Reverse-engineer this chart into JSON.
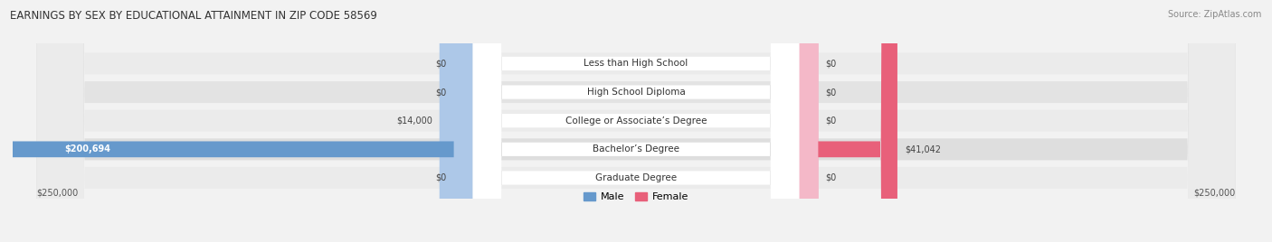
{
  "title": "EARNINGS BY SEX BY EDUCATIONAL ATTAINMENT IN ZIP CODE 58569",
  "source": "Source: ZipAtlas.com",
  "categories": [
    "Less than High School",
    "High School Diploma",
    "College or Associate’s Degree",
    "Bachelor’s Degree",
    "Graduate Degree"
  ],
  "male_values": [
    0,
    0,
    14000,
    200694,
    0
  ],
  "female_values": [
    0,
    0,
    0,
    41042,
    0
  ],
  "max_val": 250000,
  "min_bar": 8000,
  "male_color_light": "#adc8e8",
  "male_color_dark": "#6699cc",
  "female_color_light": "#f4b8c8",
  "female_color_dark": "#e8607a",
  "label_color": "#555555",
  "bg_color": "#f2f2f2",
  "row_colors": [
    "#ebebeb",
    "#e3e3e3",
    "#ebebeb",
    "#dedede",
    "#ebebeb"
  ],
  "axis_label_left": "$250,000",
  "axis_label_right": "$250,000",
  "legend_male": "Male",
  "legend_female": "Female",
  "title_fontsize": 8.5,
  "source_fontsize": 7,
  "bar_label_fontsize": 7,
  "cat_label_fontsize": 7.5,
  "axis_fontsize": 7,
  "legend_fontsize": 8
}
